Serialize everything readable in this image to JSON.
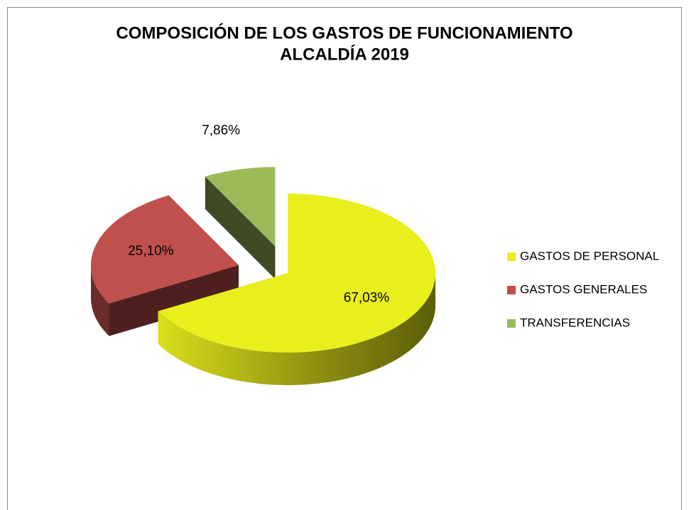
{
  "chart_data": {
    "type": "pie3d",
    "title": [
      "COMPOSICIÓN DE LOS GASTOS DE FUNCIONAMIENTO",
      "ALCALDÍA 2019"
    ],
    "categories": [
      "GASTOS DE PERSONAL",
      "GASTOS GENERALES",
      "TRANSFERENCIAS"
    ],
    "values": [
      67.03,
      25.1,
      7.86
    ],
    "value_labels": [
      "67,03%",
      "25,10%",
      "7,86%"
    ],
    "colors": [
      "#e8ef1c",
      "#c0504d",
      "#9bbb59"
    ],
    "legend": "right"
  }
}
